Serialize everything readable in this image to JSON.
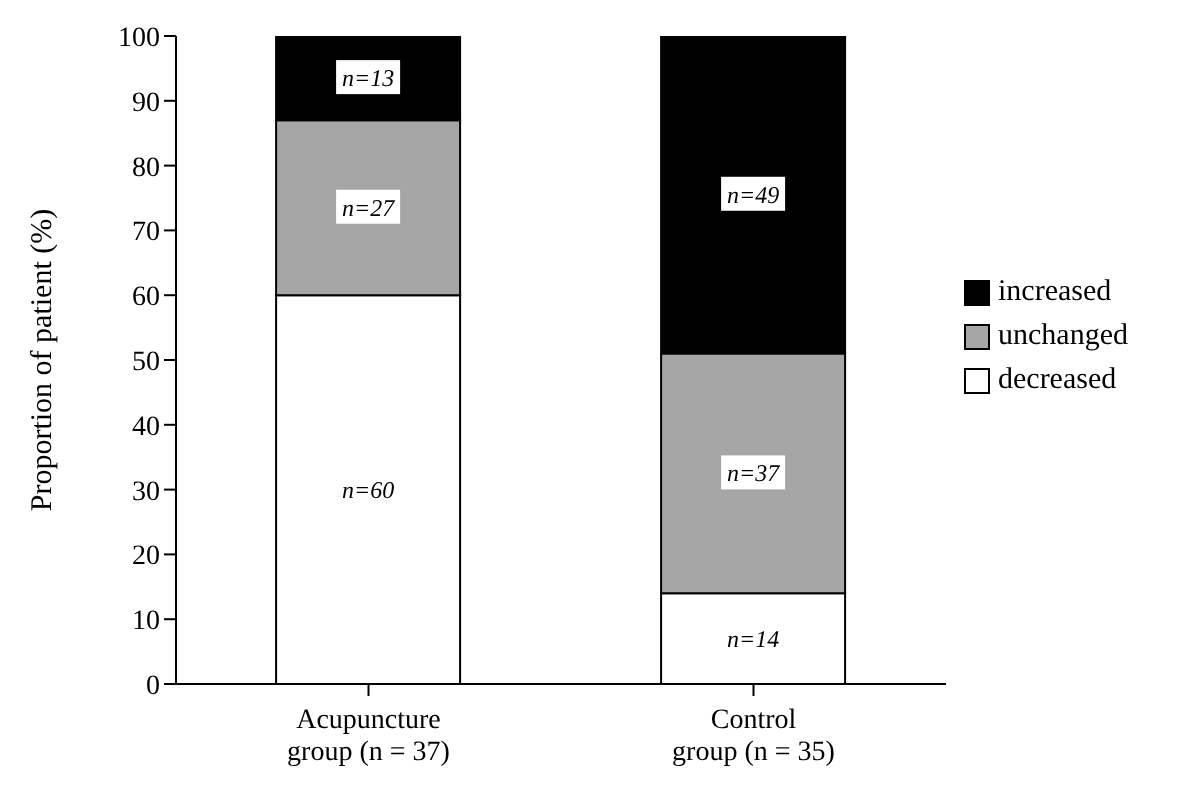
{
  "chart_data": {
    "type": "bar",
    "stacked": true,
    "ylabel": "Proportion of patient (%)",
    "categories": [
      "Acupuncture group (n = 37)",
      "Control group (n = 35)"
    ],
    "series": [
      {
        "name": "decreased",
        "color": "#ffffff",
        "values": [
          60,
          14
        ],
        "value_labels": [
          "n=60",
          "n=14"
        ]
      },
      {
        "name": "unchanged",
        "color": "#a6a6a6",
        "values": [
          27,
          37
        ],
        "value_labels": [
          "n=27",
          "n=37"
        ]
      },
      {
        "name": "increased",
        "color": "#000000",
        "values": [
          13,
          49
        ],
        "value_labels": [
          "n=13",
          "n=49"
        ]
      }
    ],
    "ylim": [
      0,
      100
    ],
    "yticks": [
      0,
      10,
      20,
      30,
      40,
      50,
      60,
      70,
      80,
      90,
      100
    ],
    "legend": "right"
  }
}
